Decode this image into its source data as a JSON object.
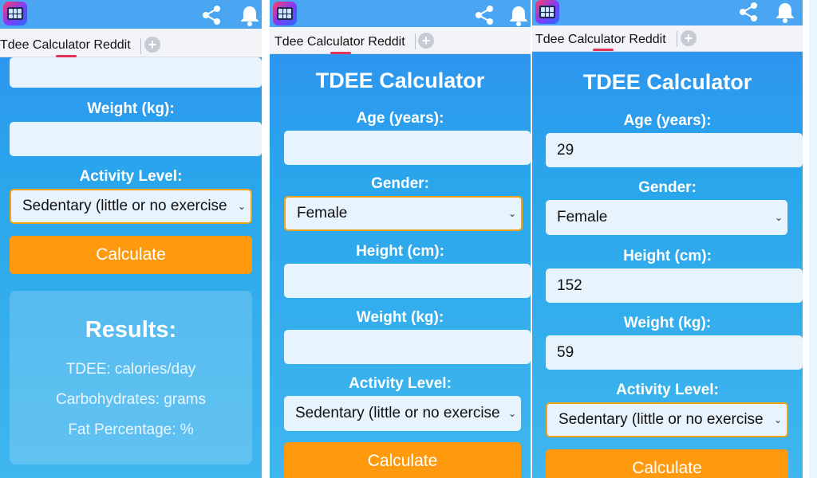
{
  "app": {
    "tab_title": "Tdee Calculator Reddit",
    "new_tab": "+"
  },
  "form": {
    "title": "TDEE Calculator",
    "age_label": "Age (years):",
    "gender_label": "Gender:",
    "height_label": "Height (cm):",
    "weight_label": "Weight (kg):",
    "activity_label": "Activity Level:",
    "gender_value": "Female",
    "activity_value": "Sedentary (little or no exercise",
    "calculate_label": "Calculate",
    "chevron": "⌄"
  },
  "filled": {
    "age": "29",
    "height": "152",
    "weight": "59"
  },
  "results": {
    "title": "Results:",
    "tdee": "TDEE: calories/day",
    "carbs": "Carbohydrates: grams",
    "fat": "Fat Percentage: %"
  },
  "icons": {
    "app": "calculator-app-icon",
    "share": "share-icon",
    "bell": "bell-icon"
  },
  "colors": {
    "accent": "#ff9a0f",
    "background": "#2aa7ec",
    "focus_border": "#f0a21a",
    "tab_indicator": "#e2345a"
  }
}
